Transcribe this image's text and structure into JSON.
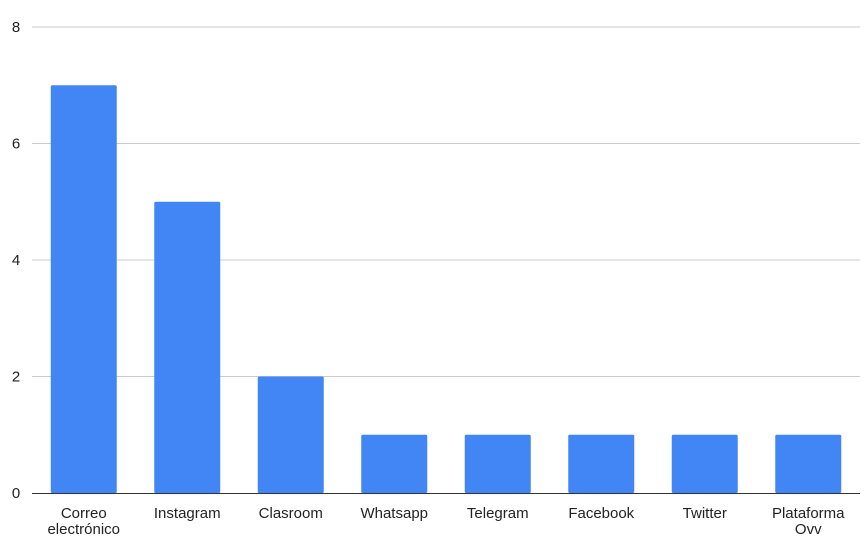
{
  "chart_data": {
    "type": "bar",
    "title": "",
    "xlabel": "",
    "ylabel": "",
    "categories": [
      "Correo electrónico",
      "Instagram",
      "Clasroom",
      "Whatsapp",
      "Telegram",
      "Facebook",
      "Twitter",
      "Plataforma Ovv"
    ],
    "category_lines": [
      [
        "Correo",
        "electrónico"
      ],
      [
        "Instagram"
      ],
      [
        "Clasroom"
      ],
      [
        "Whatsapp"
      ],
      [
        "Telegram"
      ],
      [
        "Facebook"
      ],
      [
        "Twitter"
      ],
      [
        "Plataforma",
        "Ovv"
      ]
    ],
    "values": [
      7,
      5,
      2,
      1,
      1,
      1,
      1,
      1
    ],
    "ylim": [
      0,
      8
    ],
    "yticks": [
      "0",
      "2",
      "4",
      "6",
      "8"
    ],
    "grid": true,
    "bar_color": "#4285f4"
  }
}
